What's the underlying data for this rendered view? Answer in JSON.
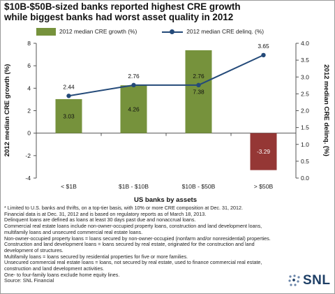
{
  "title_line1": "$10B-$50B-sized banks reported highest CRE growth",
  "title_line2": "while biggest banks had worst asset quality in 2012",
  "chart_data": {
    "type": "bar+line",
    "categories": [
      "< $1B",
      "$1B - $10B",
      "$10B - $50B",
      "> $50B"
    ],
    "series": [
      {
        "name": "2012 median CRE growth (%)",
        "type": "bar",
        "axis": "left",
        "values": [
          3.03,
          4.26,
          7.38,
          -3.29
        ],
        "labels": [
          "3.03",
          "4.26",
          "7.38",
          "-3.29"
        ],
        "colors": [
          "#76923c",
          "#76923c",
          "#76923c",
          "#953735"
        ]
      },
      {
        "name": "2012 median CRE delinq. (%)",
        "type": "line",
        "axis": "right",
        "values": [
          2.44,
          2.76,
          2.76,
          3.65
        ],
        "labels": [
          "2.44",
          "2.76",
          "2.76",
          "3.65"
        ],
        "color": "#244a79"
      }
    ],
    "xlabel": "US banks by assets",
    "ylabel": "2012 median CRE growth (%)",
    "y2label": "2012 median CRE delinq. (%)",
    "ylim": [
      -4,
      8
    ],
    "y2lim": [
      0,
      4
    ],
    "yticks": [
      "8",
      "6",
      "4",
      "2",
      "0",
      "-2",
      "-4"
    ],
    "y2ticks": [
      "4.0",
      "3.5",
      "3.0",
      "2.5",
      "2.0",
      "1.5",
      "1.0",
      "0.5",
      "0.0"
    ],
    "grid": false,
    "legend_position": "top"
  },
  "notes": [
    "* Limited to U.S. banks and thrifts, on a top-tier basis, with 10% or more CRE composition at Dec. 31, 2012.",
    "Financial data is at Dec. 31, 2012 and is based on regulatory reports as of March 18, 2013.",
    "Delinquent loans are defined as loans at least 30 days past due and nonaccrual loans.",
    "Commercial real estate loans include non-owner-occupied property loans, construction and land development loans, multifamily loans and unsecured commercial real estate loans.",
    "Non-owner-occupied property loans = loans secured by non-owner-occupied (nonfarm and/or nonresidential) properties.",
    "Construction and land development loans = loans secured by real estate, originated for the construction and land development of structures.",
    "Multifamily loans = loans secured by residential properties for five or more families.",
    "Unsecured commercial real estate loans = loans, not secured by real estate, used to finance commercial real estate, construction and land development activities.",
    "One- to four-family loans exclude home equity lines.",
    "Source: SNL Financial"
  ],
  "logo": {
    "text": "SNL"
  }
}
